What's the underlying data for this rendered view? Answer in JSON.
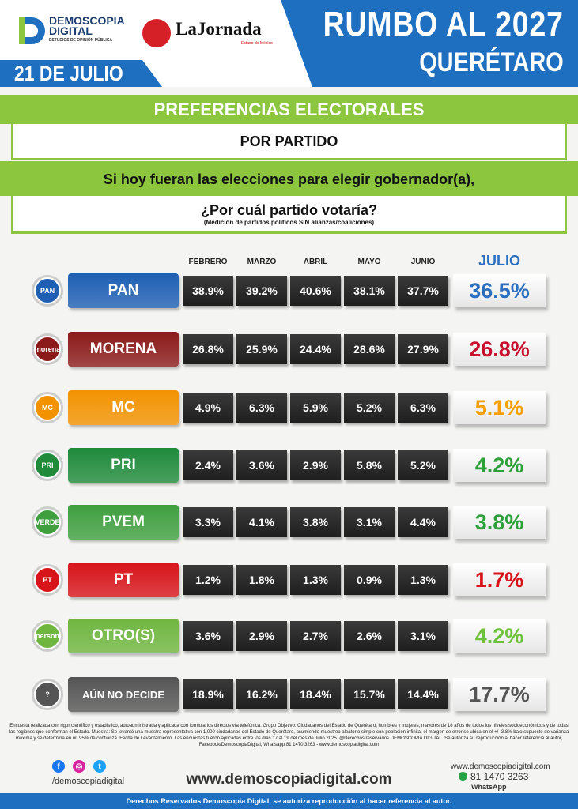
{
  "header": {
    "brand": "DEMOSCOPIA DIGITAL",
    "brand_line1": "DEMOSCOPIA",
    "brand_line2": "DIGITAL",
    "brand_tagline": "ESTUDIOS DE OPINIÓN PÚBLICA",
    "partner": "LaJornada",
    "partner_sub": "Estado de México",
    "title": "RUMBO AL 2027",
    "subtitle": "QUERÉTARO",
    "date": "21 DE JULIO"
  },
  "banners": {
    "section": "PREFERENCIAS ELECTORALES",
    "by": "POR PARTIDO",
    "question_intro": "Si hoy fueran las elecciones para elegir gobernador(a),",
    "question": "¿Por cuál partido votaría?",
    "note": "(Medición de partidos políticos SIN alianzas/coaliciones)"
  },
  "chart_data": {
    "type": "table",
    "columns": [
      "FEBRERO",
      "MARZO",
      "ABRIL",
      "MAYO",
      "JUNIO",
      "JULIO"
    ],
    "rows": [
      {
        "party": "PAN",
        "logo": "PAN",
        "color": "#1e5fb4",
        "julio_color": "#2a6fc0",
        "values": [
          "38.9%",
          "39.2%",
          "40.6%",
          "38.1%",
          "37.7%",
          "36.5%"
        ]
      },
      {
        "party": "MORENA",
        "logo": "morena",
        "color": "#8b1a1a",
        "julio_color": "#c8102e",
        "values": [
          "26.8%",
          "25.9%",
          "24.4%",
          "28.6%",
          "27.9%",
          "26.8%"
        ]
      },
      {
        "party": "MC",
        "logo": "MC",
        "color": "#f39200",
        "julio_color": "#f5a000",
        "values": [
          "4.9%",
          "6.3%",
          "5.9%",
          "5.2%",
          "6.3%",
          "5.1%"
        ]
      },
      {
        "party": "PRI",
        "logo": "PRI",
        "color": "#1e8a3a",
        "julio_color": "#2ea03a",
        "values": [
          "2.4%",
          "3.6%",
          "2.9%",
          "5.8%",
          "5.2%",
          "4.2%"
        ]
      },
      {
        "party": "PVEM",
        "logo": "VERDE",
        "color": "#3f9f3f",
        "julio_color": "#2ea03a",
        "values": [
          "3.3%",
          "4.1%",
          "3.8%",
          "3.1%",
          "4.4%",
          "3.8%"
        ]
      },
      {
        "party": "PT",
        "logo": "PT",
        "color": "#d7141a",
        "julio_color": "#d7141a",
        "values": [
          "1.2%",
          "1.8%",
          "1.3%",
          "0.9%",
          "1.3%",
          "1.7%"
        ]
      },
      {
        "party": "OTRO(S)",
        "logo": "person",
        "color": "#6fb63f",
        "julio_color": "#6ec23b",
        "values": [
          "3.6%",
          "2.9%",
          "2.7%",
          "2.6%",
          "3.1%",
          "4.2%"
        ]
      },
      {
        "party": "AÚN NO DECIDE",
        "logo": "?",
        "color": "#555555",
        "julio_color": "#555555",
        "values": [
          "18.9%",
          "16.2%",
          "18.4%",
          "15.7%",
          "14.4%",
          "17.7%"
        ]
      }
    ]
  },
  "footer": {
    "methodology": "Encuesta realizada con rigor científico y estadístico, autoadministrada y aplicada con formularios directos vía telefónica. Grupo Objetivo: Ciudadanos del Estado de Querétaro, hombres y mujeres, mayores de 18 años de todos los niveles socioeconómicos y de todas las regiones que conforman el Estado. Muestra: Se levantó una muestra representativa con 1,000 ciudadanos del Estado de Querétaro, asumiendo muestreo aleatorio simple con población infinita, el margen de error se ubica en el +/- 3.8% bajo supuesto de varianza máxima y se determina en un 95% de confianza. Fecha de Levantamiento. Las encuestas fueron aplicadas entre los días 17 al 19 del mes de Julio 2025. @Derechos reservados DEMOSCOPIA DIGITAL. Se autoriza su reproducción al hacer referencia al autor, Facebook/DemoscopiaDigital, Whatsapp 81 1470 3263 - www.demoscopiadigital.com",
    "social_handle": "/demoscopiadigital",
    "social": [
      {
        "icon": "facebook-icon",
        "glyph": "f",
        "color": "#1877f2"
      },
      {
        "icon": "instagram-icon",
        "glyph": "◎",
        "color": "#d6249f"
      },
      {
        "icon": "twitter-icon",
        "glyph": "t",
        "color": "#1da1f2"
      }
    ],
    "url": "www.demoscopiadigital.com",
    "web": "www.demoscopiadigital.com",
    "phone": "81 1470 3263",
    "whatsapp": "WhatsApp",
    "rights": "Derechos Reservados Demoscopia Digital, se autoriza reproducción al hacer referencia al autor."
  }
}
